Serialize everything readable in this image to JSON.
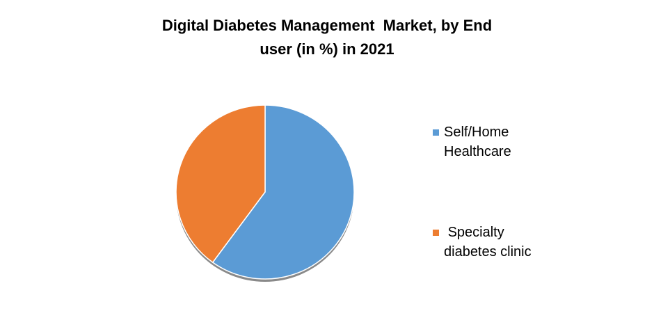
{
  "chart_data": {
    "type": "pie",
    "title": "Digital Diabetes Management  Market, by End user (in %) in 2021",
    "categories": [
      "Self/Home Healthcare",
      " Specialty diabetes clinic"
    ],
    "values": [
      60,
      40
    ],
    "colors": [
      "#5b9bd5",
      "#ed7d31"
    ],
    "legend": "right"
  }
}
